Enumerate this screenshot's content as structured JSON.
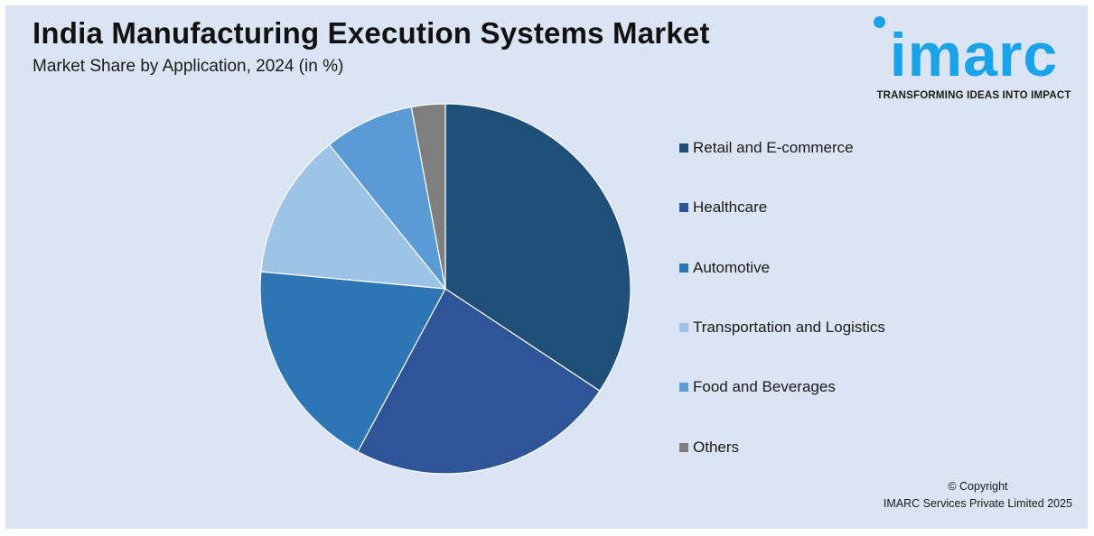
{
  "header": {
    "title": "India Manufacturing Execution Systems Market",
    "subtitle": "Market Share by Application, 2024 (in %)"
  },
  "logo": {
    "word": "imarc",
    "tagline": "TRANSFORMING IDEAS INTO IMPACT",
    "color": "#1aa3e8"
  },
  "footer": {
    "copyright_line1": "© Copyright",
    "copyright_line2": "IMARC Services Private Limited 2025"
  },
  "chart_data": {
    "type": "pie",
    "title": "India Manufacturing Execution Systems Market",
    "subtitle": "Market Share by Application, 2024 (in %)",
    "legend_position": "right",
    "start_angle_deg": 0,
    "direction": "clockwise",
    "slices": [
      {
        "label": "Retail and E-commerce",
        "value": 35,
        "color": "#1f4e79"
      },
      {
        "label": "Healthcare",
        "value": 24,
        "color": "#2e5597"
      },
      {
        "label": "Automotive",
        "value": 19,
        "color": "#2e75b6"
      },
      {
        "label": "Transportation and Logistics",
        "value": 13,
        "color": "#9dc3e6"
      },
      {
        "label": "Food and Beverages",
        "value": 8,
        "color": "#5b9bd5"
      },
      {
        "label": "Others",
        "value": 3,
        "color": "#7f7f7f"
      }
    ]
  }
}
